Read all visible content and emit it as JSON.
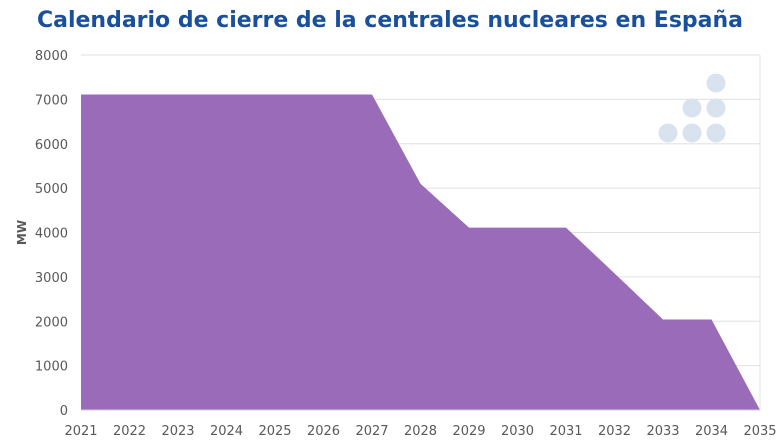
{
  "chart_data": {
    "type": "area",
    "title": "Calendario de cierre de la centrales nucleares en España",
    "xlabel": "",
    "ylabel": "MW",
    "x": [
      2021,
      2022,
      2023,
      2024,
      2025,
      2026,
      2027,
      2028,
      2029,
      2030,
      2031,
      2032,
      2033,
      2034,
      2035
    ],
    "series": [
      {
        "values": [
          7110,
          7110,
          7110,
          7110,
          7110,
          7110,
          7110,
          5100,
          4110,
          4110,
          4110,
          3080,
          2040,
          2040,
          0
        ]
      }
    ],
    "xlim": [
      2021,
      2035
    ],
    "ylim": [
      0,
      8000
    ],
    "yticks": [
      0,
      1000,
      2000,
      3000,
      4000,
      5000,
      6000,
      7000,
      8000
    ],
    "grid": true,
    "legend": "none",
    "colors": {
      "fill": "#9a6bb8",
      "title": "#1a4f9c",
      "logo_dots": "#d9e3f0"
    }
  },
  "logo": {
    "name": "dots-logo-icon"
  }
}
